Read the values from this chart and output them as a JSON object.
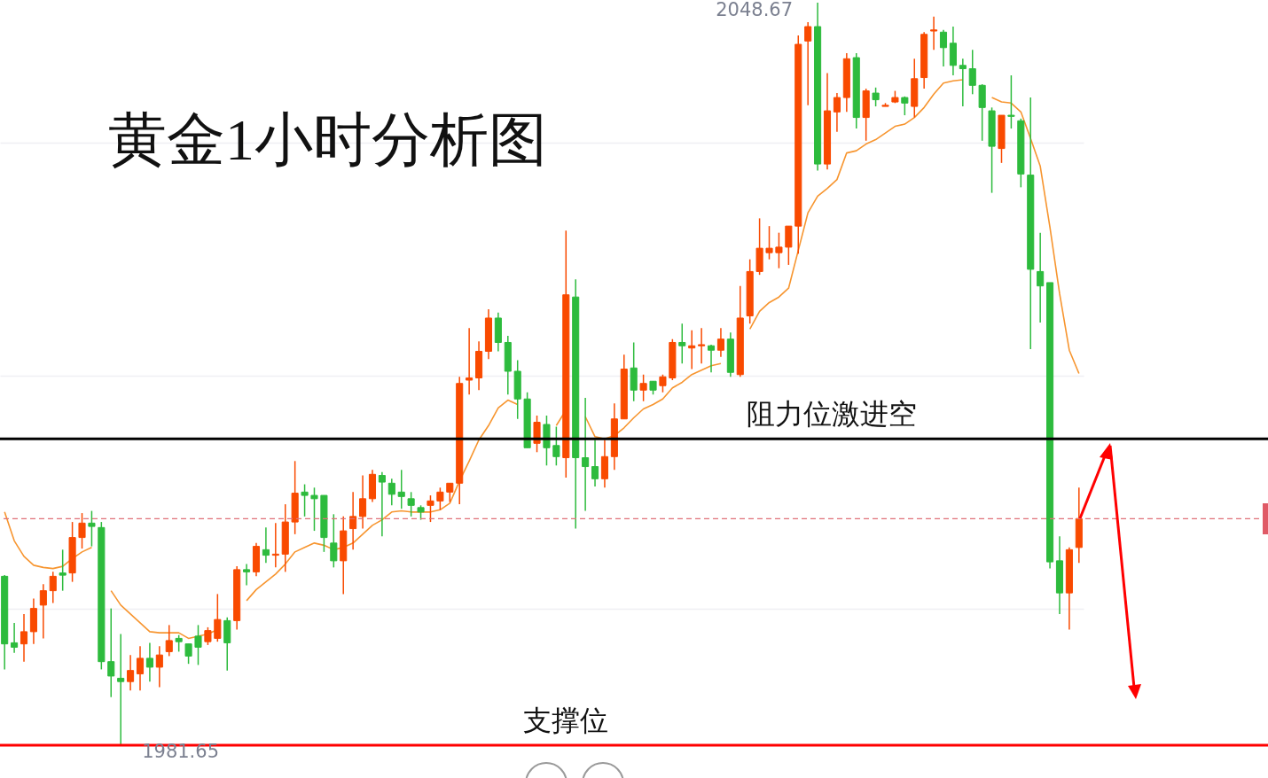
{
  "chart_data": {
    "type": "candlestick",
    "title": "黄金1小时分析图",
    "categories": [
      null,
      null,
      null,
      null,
      null,
      null,
      null,
      null,
      null,
      null,
      null,
      null,
      null,
      null,
      null,
      null,
      null,
      null,
      null,
      null,
      null,
      null,
      null,
      null,
      null,
      null,
      null,
      null,
      null,
      null,
      null,
      null,
      null,
      null,
      null,
      null,
      null,
      null,
      null,
      null,
      null,
      null,
      null,
      null,
      null,
      null,
      null,
      null,
      null,
      null,
      null,
      null,
      null,
      null,
      null,
      null,
      null,
      null,
      null,
      null,
      null,
      null,
      null,
      null,
      null,
      null,
      null,
      null,
      null,
      null,
      null,
      null,
      null,
      null,
      null,
      null,
      null,
      null,
      null,
      null,
      null,
      null,
      null,
      null,
      null,
      null,
      null,
      null,
      null,
      null,
      null,
      null,
      null,
      null,
      null,
      null,
      null,
      null,
      null,
      null,
      null,
      null,
      null,
      null,
      null,
      null,
      null,
      null,
      null,
      null,
      null,
      null
    ],
    "ohlc": [
      [
        1996.9,
        1997.0,
        1988.5,
        1990.8
      ],
      [
        1990.9,
        1992.7,
        1990.0,
        1990.5
      ],
      [
        1990.8,
        1993.5,
        1989.2,
        1991.9
      ],
      [
        1991.9,
        1994.9,
        1990.8,
        1994.0
      ],
      [
        1994.3,
        1996.2,
        1991.3,
        1995.6
      ],
      [
        1995.6,
        1997.3,
        1994.5,
        1996.9
      ],
      [
        1997.2,
        1999.3,
        1995.6,
        1997.0
      ],
      [
        1997.2,
        2001.8,
        1996.4,
        2000.4
      ],
      [
        2000.4,
        2002.6,
        1999.4,
        2001.7
      ],
      [
        2001.7,
        2002.8,
        1999.6,
        2001.4
      ],
      [
        2001.3,
        2001.8,
        1988.5,
        1989.2
      ],
      [
        1989.2,
        1994.0,
        1986.0,
        1987.9
      ],
      [
        1987.7,
        1991.7,
        1981.65,
        1987.4
      ],
      [
        1987.4,
        1989.8,
        1986.6,
        1988.4
      ],
      [
        1988.1,
        1990.6,
        1986.6,
        1989.5
      ],
      [
        1989.5,
        1990.9,
        1987.4,
        1988.7
      ],
      [
        1988.7,
        1990.6,
        1986.9,
        1989.8
      ],
      [
        1990.1,
        1992.5,
        1989.7,
        1991.1
      ],
      [
        1991.3,
        1991.6,
        1990.1,
        1991.0
      ],
      [
        1990.8,
        1990.8,
        1989.0,
        1989.7
      ],
      [
        1991.5,
        1992.5,
        1988.9,
        1990.5
      ],
      [
        1991.0,
        1992.3,
        1990.7,
        1992.0
      ],
      [
        1991.3,
        1995.3,
        1991.0,
        1993.0
      ],
      [
        1992.9,
        1993.2,
        1988.4,
        1990.9
      ],
      [
        1992.9,
        1997.8,
        1992.1,
        1997.5
      ],
      [
        1997.5,
        1998.0,
        1996.1,
        1997.3
      ],
      [
        1997.3,
        1999.9,
        1996.9,
        1999.6
      ],
      [
        1999.3,
        2001.3,
        1998.1,
        1998.8
      ],
      [
        1998.8,
        2001.7,
        1997.7,
        1998.9
      ],
      [
        1998.9,
        2003.4,
        1997.3,
        2001.8
      ],
      [
        2001.8,
        2007.3,
        2000.7,
        2004.4
      ],
      [
        2004.5,
        2005.2,
        2002.3,
        2004.2
      ],
      [
        2004.2,
        2004.9,
        2001.0,
        2003.9
      ],
      [
        2004.2,
        2004.2,
        1999.1,
        2000.4
      ],
      [
        1999.9,
        2002.5,
        1997.7,
        1998.3
      ],
      [
        1998.3,
        2002.3,
        1995.3,
        2001.0
      ],
      [
        2001.2,
        2004.5,
        1999.3,
        2002.3
      ],
      [
        2002.3,
        2006.0,
        2001.2,
        2003.9
      ],
      [
        2003.9,
        2006.5,
        2003.6,
        2006.1
      ],
      [
        2006.0,
        2006.3,
        2000.5,
        2005.4
      ],
      [
        2005.3,
        2005.7,
        2003.3,
        2004.3
      ],
      [
        2004.5,
        2006.5,
        2003.0,
        2004.1
      ],
      [
        2003.9,
        2004.5,
        2002.3,
        2003.3
      ],
      [
        2003.1,
        2003.3,
        2002.0,
        2002.7
      ],
      [
        2003.3,
        2004.2,
        2001.8,
        2003.7
      ],
      [
        2003.7,
        2004.9,
        2002.9,
        2004.5
      ],
      [
        2004.5,
        2005.3,
        2003.6,
        2005.3
      ],
      [
        2005.3,
        2014.9,
        2003.4,
        2014.3
      ],
      [
        2014.6,
        2019.3,
        2013.3,
        2014.8
      ],
      [
        2014.8,
        2018.1,
        2013.7,
        2017.2
      ],
      [
        2017.2,
        2021.0,
        2016.5,
        2020.2
      ],
      [
        2020.2,
        2020.7,
        2017.2,
        2018.0
      ],
      [
        2018.0,
        2018.6,
        2013.3,
        2015.4
      ],
      [
        2015.4,
        2016.4,
        2011.1,
        2012.9
      ],
      [
        2012.9,
        2013.5,
        2008.5,
        2008.5
      ],
      [
        2008.9,
        2011.4,
        2008.1,
        2010.8
      ],
      [
        2010.6,
        2011.4,
        2006.9,
        2008.5
      ],
      [
        2008.7,
        2010.4,
        2006.9,
        2007.7
      ],
      [
        2007.6,
        2028.1,
        2005.8,
        2022.3
      ],
      [
        2022.1,
        2023.7,
        2001.2,
        2007.6
      ],
      [
        2007.6,
        2013.0,
        2002.8,
        2006.8
      ],
      [
        2006.8,
        2009.2,
        2005.0,
        2005.7
      ],
      [
        2005.7,
        2009.2,
        2004.9,
        2007.7
      ],
      [
        2007.7,
        2012.5,
        2006.5,
        2011.1
      ],
      [
        2011.1,
        2016.9,
        2011.1,
        2015.6
      ],
      [
        2015.7,
        2018.0,
        2012.7,
        2013.7
      ],
      [
        2013.7,
        2015.1,
        2012.7,
        2014.3
      ],
      [
        2014.5,
        2014.5,
        2013.3,
        2013.7
      ],
      [
        2014.1,
        2015.1,
        2013.5,
        2014.9
      ],
      [
        2014.8,
        2018.3,
        2014.6,
        2018.0
      ],
      [
        2018.0,
        2019.7,
        2016.1,
        2017.7
      ],
      [
        2017.5,
        2019.1,
        2015.6,
        2017.7
      ],
      [
        2017.7,
        2019.3,
        2016.1,
        2017.8
      ],
      [
        2017.7,
        2017.8,
        2015.3,
        2017.3
      ],
      [
        2017.3,
        2019.3,
        2016.7,
        2018.3
      ],
      [
        2018.3,
        2018.9,
        2014.9,
        2015.3
      ],
      [
        2015.1,
        2023.1,
        2014.9,
        2020.2
      ],
      [
        2020.4,
        2025.5,
        2019.7,
        2024.4
      ],
      [
        2024.4,
        2029.2,
        2024.1,
        2026.5
      ],
      [
        2026.1,
        2028.5,
        2025.5,
        2026.5
      ],
      [
        2026.1,
        2027.9,
        2024.7,
        2026.6
      ],
      [
        2026.6,
        2028.5,
        2025.0,
        2028.5
      ],
      [
        2028.5,
        2045.7,
        2026.0,
        2044.9
      ],
      [
        2045.2,
        2046.9,
        2039.4,
        2046.5
      ],
      [
        2046.5,
        2048.67,
        2033.5,
        2034.1
      ],
      [
        2034.1,
        2042.3,
        2033.6,
        2038.9
      ],
      [
        2038.8,
        2040.5,
        2037.0,
        2040.1
      ],
      [
        2040.1,
        2044.1,
        2038.8,
        2043.6
      ],
      [
        2043.7,
        2044.1,
        2037.3,
        2038.3
      ],
      [
        2038.3,
        2040.9,
        2036.2,
        2040.7
      ],
      [
        2040.5,
        2041.0,
        2039.3,
        2039.9
      ],
      [
        2039.3,
        2039.6,
        2039.3,
        2039.4
      ],
      [
        2039.7,
        2040.7,
        2039.6,
        2040.1
      ],
      [
        2040.1,
        2040.2,
        2038.5,
        2039.6
      ],
      [
        2039.3,
        2043.6,
        2038.3,
        2041.8
      ],
      [
        2041.9,
        2046.0,
        2040.9,
        2045.8
      ],
      [
        2046.1,
        2047.4,
        2044.4,
        2046.2
      ],
      [
        2046.0,
        2046.2,
        2042.9,
        2044.6
      ],
      [
        2045.0,
        2046.5,
        2042.1,
        2043.0
      ],
      [
        2043.0,
        2043.6,
        2039.3,
        2042.7
      ],
      [
        2042.7,
        2044.4,
        2040.4,
        2041.2
      ],
      [
        2041.2,
        2041.3,
        2036.2,
        2039.2
      ],
      [
        2038.9,
        2039.2,
        2031.5,
        2035.7
      ],
      [
        2035.5,
        2038.5,
        2034.2,
        2038.5
      ],
      [
        2038.5,
        2042.1,
        2037.3,
        2038.4
      ],
      [
        2038.0,
        2038.2,
        2032.0,
        2033.2
      ],
      [
        2033.1,
        2040.1,
        2017.4,
        2024.6
      ],
      [
        2024.4,
        2027.9,
        2019.8,
        2023.1
      ],
      [
        2023.4,
        2023.4,
        1997.6,
        1998.2
      ],
      [
        1998.3,
        2000.5,
        1993.5,
        1995.4
      ],
      [
        1995.4,
        1999.5,
        1992.1,
        1999.3
      ],
      [
        1999.5,
        2004.9,
        1998.1,
        2002.1
      ]
    ],
    "colors": [
      "#2dbb3d",
      "#2dbb3d",
      "#f94a00",
      "#f94a00",
      "#f94a00",
      "#f94a00",
      "#2dbb3d",
      "#f94a00",
      "#f94a00",
      "#2dbb3d",
      "#2dbb3d",
      "#2dbb3d",
      "#2dbb3d",
      "#f94a00",
      "#f94a00",
      "#2dbb3d",
      "#f94a00",
      "#f94a00",
      "#2dbb3d",
      "#2dbb3d",
      "#2dbb3d",
      "#f94a00",
      "#f94a00",
      "#2dbb3d",
      "#f94a00",
      "#2dbb3d",
      "#f94a00",
      "#2dbb3d",
      "#f94a00",
      "#f94a00",
      "#f94a00",
      "#2dbb3d",
      "#2dbb3d",
      "#2dbb3d",
      "#2dbb3d",
      "#f94a00",
      "#f94a00",
      "#f94a00",
      "#f94a00",
      "#2dbb3d",
      "#2dbb3d",
      "#2dbb3d",
      "#2dbb3d",
      "#2dbb3d",
      "#f94a00",
      "#f94a00",
      "#f94a00",
      "#f94a00",
      "#f94a00",
      "#f94a00",
      "#f94a00",
      "#2dbb3d",
      "#2dbb3d",
      "#2dbb3d",
      "#2dbb3d",
      "#f94a00",
      "#2dbb3d",
      "#2dbb3d",
      "#f94a00",
      "#2dbb3d",
      "#2dbb3d",
      "#2dbb3d",
      "#f94a00",
      "#f94a00",
      "#f94a00",
      "#2dbb3d",
      "#f94a00",
      "#2dbb3d",
      "#f94a00",
      "#f94a00",
      "#2dbb3d",
      "#f94a00",
      "#f94a00",
      "#2dbb3d",
      "#f94a00",
      "#2dbb3d",
      "#f94a00",
      "#f94a00",
      "#f94a00",
      "#f94a00",
      "#f94a00",
      "#f94a00",
      "#f94a00",
      "#f94a00",
      "#2dbb3d",
      "#f94a00",
      "#f94a00",
      "#f94a00",
      "#2dbb3d",
      "#f94a00",
      "#2dbb3d",
      "#f94a00",
      "#f94a00",
      "#2dbb3d",
      "#f94a00",
      "#f94a00",
      "#f94a00",
      "#2dbb3d",
      "#2dbb3d",
      "#2dbb3d",
      "#2dbb3d",
      "#2dbb3d",
      "#2dbb3d",
      "#f94a00",
      "#2dbb3d",
      "#2dbb3d",
      "#2dbb3d",
      "#2dbb3d",
      "#2dbb3d",
      "#2dbb3d",
      "#f94a00",
      "#f94a00"
    ],
    "series": [
      {
        "type": "line",
        "color": "#f7952f",
        "values": [
          2002.7,
          2000.1,
          1998.7,
          1997.9,
          1997.7,
          1997.6,
          1997.8,
          1998.5,
          1999.1,
          1999.5,
          null,
          1995.6,
          1994.3,
          1993.5,
          1992.7,
          1991.9,
          1991.8,
          1991.8,
          1991.8,
          1991.3,
          1991.5,
          1991.7,
          1992.1,
          null,
          null,
          1994.7,
          1995.7,
          1996.4,
          1997.1,
          1998.0,
          1999.1,
          1999.5,
          1999.9,
          1999.7,
          1999.3,
          1999.5,
          1999.9,
          2000.7,
          2001.5,
          2002.0,
          2002.7,
          2002.8,
          2002.7,
          2002.7,
          2002.7,
          2002.9,
          2003.5,
          2005.5,
          2007.3,
          2009.2,
          2010.5,
          2012.1,
          2012.8,
          2012.4,
          null,
          null,
          null,
          2010.5,
          2011.9,
          null,
          2011.3,
          2009.5,
          2009.3,
          2009.6,
          2010.3,
          2011.2,
          2012.0,
          2012.4,
          2012.9,
          2013.9,
          2014.4,
          2015.1,
          2015.5,
          2015.9,
          2016.1,
          null,
          null,
          2019.2,
          2020.8,
          2021.6,
          2022.1,
          2022.9,
          2026.3,
          2029.7,
          2031.2,
          2031.9,
          2032.7,
          2035.1,
          2035.3,
          2035.9,
          2036.3,
          2036.9,
          2037.5,
          2037.7,
          2038.3,
          2039.2,
          2040.4,
          2041.4,
          2041.6,
          2041.7,
          null,
          null,
          2040.1,
          2039.7,
          2039.6,
          2038.8,
          2036.4,
          2033.9,
          2028.4,
          2022.4,
          2017.3,
          2015.2
        ]
      }
    ],
    "ylim": [
      1978.7,
      2048.9
    ],
    "yticks": [
      {
        "value": 1994,
        "label": null
      },
      {
        "value": 2015,
        "label": null
      },
      {
        "value": 2036,
        "label": null
      }
    ],
    "grid": "y",
    "ref_lines": [
      {
        "axis": "y",
        "value": 2009.3,
        "label": "阻力位激进空",
        "color": "#000000"
      },
      {
        "axis": "y",
        "value": 1981.65,
        "label": "支撑位",
        "color": "#ff0000"
      },
      {
        "axis": "y",
        "value": 2002.1,
        "color": "#e07078",
        "line_style": "dashed"
      }
    ],
    "annotations": [
      "2048.67",
      "1981.65"
    ]
  }
}
